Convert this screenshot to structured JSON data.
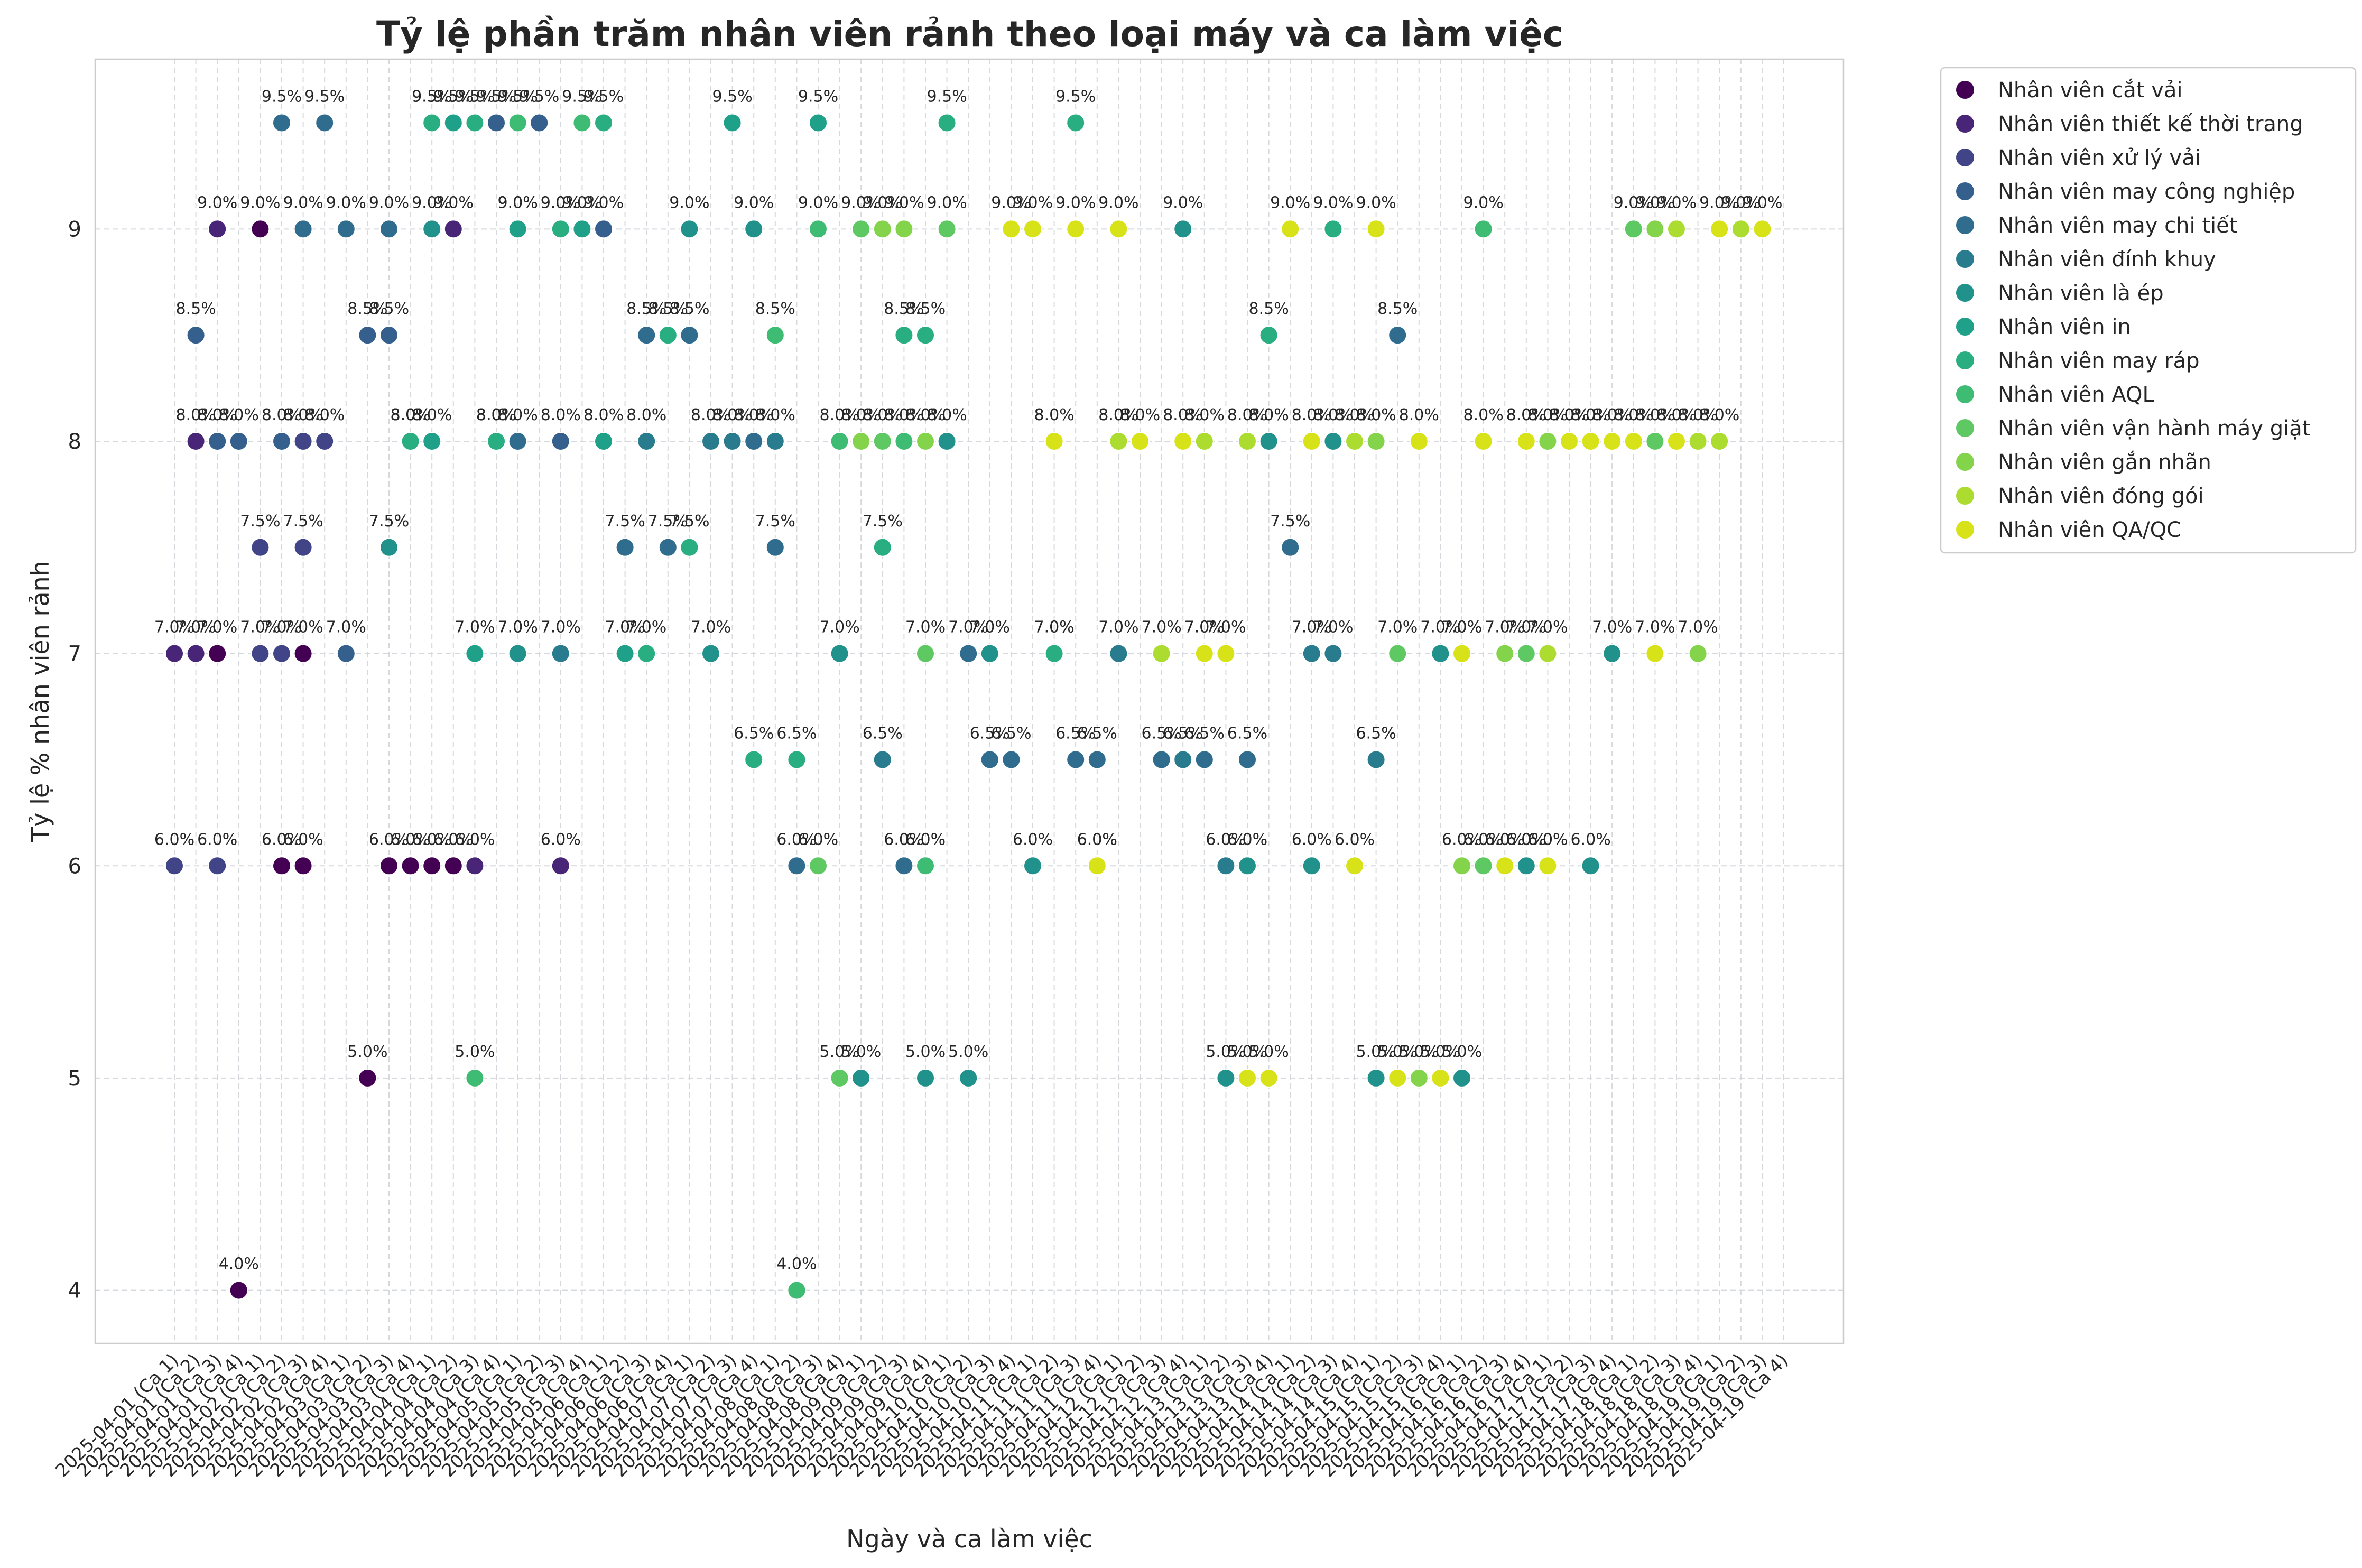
{
  "chart_data": {
    "type": "scatter",
    "title": "Tỷ lệ phần trăm nhân viên rảnh theo loại máy và ca làm việc",
    "xlabel": "Ngày và ca làm việc",
    "ylabel": "Tỷ lệ % nhân viên rảnh",
    "ylim": [
      3.75,
      9.8
    ],
    "yticks": [
      4,
      5,
      6,
      7,
      8,
      9
    ],
    "grid": true,
    "legend_position": "outside upper right",
    "label_format": "{y}%",
    "categories": [
      "2025-04-01 (Ca 1)",
      "2025-04-01 (Ca 2)",
      "2025-04-01 (Ca 3)",
      "2025-04-01 (Ca 4)",
      "2025-04-02 (Ca 1)",
      "2025-04-02 (Ca 2)",
      "2025-04-02 (Ca 3)",
      "2025-04-02 (Ca 4)",
      "2025-04-03 (Ca 1)",
      "2025-04-03 (Ca 2)",
      "2025-04-03 (Ca 3)",
      "2025-04-03 (Ca 4)",
      "2025-04-04 (Ca 1)",
      "2025-04-04 (Ca 2)",
      "2025-04-04 (Ca 3)",
      "2025-04-04 (Ca 4)",
      "2025-04-05 (Ca 1)",
      "2025-04-05 (Ca 2)",
      "2025-04-05 (Ca 3)",
      "2025-04-05 (Ca 4)",
      "2025-04-06 (Ca 1)",
      "2025-04-06 (Ca 2)",
      "2025-04-06 (Ca 3)",
      "2025-04-06 (Ca 4)",
      "2025-04-07 (Ca 1)",
      "2025-04-07 (Ca 2)",
      "2025-04-07 (Ca 3)",
      "2025-04-07 (Ca 4)",
      "2025-04-08 (Ca 1)",
      "2025-04-08 (Ca 2)",
      "2025-04-08 (Ca 3)",
      "2025-04-08 (Ca 4)",
      "2025-04-09 (Ca 1)",
      "2025-04-09 (Ca 2)",
      "2025-04-09 (Ca 3)",
      "2025-04-09 (Ca 4)",
      "2025-04-10 (Ca 1)",
      "2025-04-10 (Ca 2)",
      "2025-04-10 (Ca 3)",
      "2025-04-10 (Ca 4)",
      "2025-04-11 (Ca 1)",
      "2025-04-11 (Ca 2)",
      "2025-04-11 (Ca 3)",
      "2025-04-11 (Ca 4)",
      "2025-04-12 (Ca 1)",
      "2025-04-12 (Ca 2)",
      "2025-04-12 (Ca 3)",
      "2025-04-12 (Ca 4)",
      "2025-04-13 (Ca 1)",
      "2025-04-13 (Ca 2)",
      "2025-04-13 (Ca 3)",
      "2025-04-13 (Ca 4)",
      "2025-04-14 (Ca 1)",
      "2025-04-14 (Ca 2)",
      "2025-04-14 (Ca 3)",
      "2025-04-14 (Ca 4)",
      "2025-04-15 (Ca 1)",
      "2025-04-15 (Ca 2)",
      "2025-04-15 (Ca 3)",
      "2025-04-15 (Ca 4)",
      "2025-04-16 (Ca 1)",
      "2025-04-16 (Ca 2)",
      "2025-04-16 (Ca 3)",
      "2025-04-16 (Ca 4)",
      "2025-04-17 (Ca 1)",
      "2025-04-17 (Ca 2)",
      "2025-04-17 (Ca 3)",
      "2025-04-17 (Ca 4)",
      "2025-04-18 (Ca 1)",
      "2025-04-18 (Ca 2)",
      "2025-04-18 (Ca 3)",
      "2025-04-18 (Ca 4)",
      "2025-04-19 (Ca 1)",
      "2025-04-19 (Ca 2)",
      "2025-04-19 (Ca 3)",
      "2025-04-19 (Ca 4)"
    ],
    "series": [
      {
        "name": "Nhân viên cắt vải",
        "color": "#440154",
        "points": [
          [
            2,
            7.0
          ],
          [
            9,
            5.0
          ],
          [
            3,
            4.0
          ],
          [
            6,
            7.0
          ],
          [
            4,
            9.0
          ],
          [
            5,
            6.0
          ],
          [
            6,
            6.0
          ],
          [
            10,
            6.0
          ],
          [
            11,
            6.0
          ],
          [
            12,
            6.0
          ],
          [
            13,
            6.0
          ]
        ]
      },
      {
        "name": "Nhân viên thiết kế thời trang",
        "color": "#482576",
        "points": [
          [
            0,
            7.0
          ],
          [
            1,
            8.0
          ],
          [
            2,
            9.0
          ],
          [
            1,
            7.0
          ],
          [
            13,
            9.0
          ],
          [
            14,
            6.0
          ],
          [
            16,
            7.0
          ],
          [
            16,
            9.0
          ],
          [
            18,
            9.0
          ],
          [
            18,
            6.0
          ]
        ]
      },
      {
        "name": "Nhân viên xử lý vải",
        "color": "#414487",
        "points": [
          [
            0,
            6.0
          ],
          [
            2,
            6.0
          ],
          [
            4,
            7.0
          ],
          [
            5,
            7.0
          ],
          [
            4,
            7.5
          ],
          [
            6,
            7.5
          ],
          [
            6,
            8.0
          ],
          [
            7,
            8.0
          ],
          [
            10,
            7.5
          ]
        ]
      },
      {
        "name": "Nhân viên may công nghiệp",
        "color": "#35608d",
        "points": [
          [
            1,
            8.5
          ],
          [
            2,
            8.0
          ],
          [
            3,
            8.0
          ],
          [
            5,
            8.0
          ],
          [
            8,
            7.0
          ],
          [
            9,
            8.5
          ],
          [
            10,
            8.5
          ],
          [
            11,
            8.0
          ],
          [
            12,
            9.5
          ],
          [
            13,
            9.5
          ],
          [
            15,
            9.5
          ],
          [
            16,
            9.5
          ],
          [
            17,
            9.5
          ],
          [
            18,
            8.0
          ],
          [
            20,
            9.0
          ]
        ]
      },
      {
        "name": "Nhân viên may chi tiết",
        "color": "#2f6c8e",
        "points": [
          [
            5,
            9.5
          ],
          [
            6,
            9.0
          ],
          [
            7,
            9.5
          ],
          [
            8,
            9.0
          ],
          [
            10,
            9.0
          ],
          [
            15,
            8.0
          ],
          [
            16,
            8.0
          ],
          [
            21,
            7.5
          ],
          [
            22,
            8.5
          ],
          [
            23,
            7.5
          ],
          [
            24,
            8.5
          ],
          [
            27,
            8.0
          ],
          [
            28,
            7.5
          ],
          [
            29,
            6.0
          ],
          [
            34,
            6.0
          ],
          [
            37,
            7.0
          ],
          [
            38,
            6.5
          ],
          [
            39,
            6.5
          ],
          [
            42,
            6.5
          ],
          [
            43,
            6.5
          ],
          [
            46,
            6.5
          ],
          [
            48,
            6.5
          ],
          [
            50,
            6.5
          ],
          [
            52,
            7.5
          ],
          [
            57,
            8.5
          ],
          [
            56,
            6.5
          ]
        ]
      },
      {
        "name": "Nhân viên đính khuy",
        "color": "#287c8e",
        "points": [
          [
            11,
            8.0
          ],
          [
            18,
            7.0
          ],
          [
            22,
            8.0
          ],
          [
            25,
            8.0
          ],
          [
            26,
            8.0
          ],
          [
            28,
            8.0
          ],
          [
            33,
            6.5
          ],
          [
            41,
            7.0
          ],
          [
            44,
            7.0
          ],
          [
            47,
            6.5
          ],
          [
            49,
            6.0
          ],
          [
            51,
            8.0
          ],
          [
            53,
            7.0
          ],
          [
            54,
            7.0
          ],
          [
            56,
            6.5
          ],
          [
            63,
            6.0
          ]
        ]
      },
      {
        "name": "Nhân viên là ép",
        "color": "#21918c",
        "points": [
          [
            10,
            7.5
          ],
          [
            12,
            9.0
          ],
          [
            15,
            8.0
          ],
          [
            16,
            7.0
          ],
          [
            24,
            9.0
          ],
          [
            25,
            7.0
          ],
          [
            27,
            9.0
          ],
          [
            31,
            7.0
          ],
          [
            32,
            5.0
          ],
          [
            35,
            5.0
          ],
          [
            36,
            8.0
          ],
          [
            37,
            5.0
          ],
          [
            38,
            7.0
          ],
          [
            40,
            6.0
          ],
          [
            43,
            6.0
          ],
          [
            44,
            8.0
          ],
          [
            47,
            9.0
          ],
          [
            48,
            7.0
          ],
          [
            49,
            5.0
          ],
          [
            50,
            6.0
          ],
          [
            51,
            8.0
          ],
          [
            53,
            6.0
          ],
          [
            54,
            8.0
          ],
          [
            56,
            5.0
          ],
          [
            58,
            5.0
          ],
          [
            59,
            7.0
          ],
          [
            60,
            5.0
          ],
          [
            63,
            6.0
          ],
          [
            64,
            6.0
          ],
          [
            66,
            6.0
          ],
          [
            67,
            7.0
          ]
        ]
      },
      {
        "name": "Nhân viên in",
        "color": "#1fa088",
        "points": [
          [
            12,
            8.0
          ],
          [
            13,
            9.5
          ],
          [
            14,
            7.0
          ],
          [
            16,
            9.0
          ],
          [
            19,
            9.0
          ],
          [
            20,
            8.0
          ],
          [
            21,
            7.0
          ],
          [
            26,
            9.5
          ],
          [
            30,
            9.5
          ]
        ]
      },
      {
        "name": "Nhân viên may ráp",
        "color": "#28ae80",
        "points": [
          [
            11,
            8.0
          ],
          [
            12,
            9.5
          ],
          [
            14,
            9.5
          ],
          [
            15,
            8.0
          ],
          [
            18,
            9.0
          ],
          [
            20,
            9.5
          ],
          [
            22,
            7.0
          ],
          [
            23,
            8.5
          ],
          [
            24,
            7.5
          ],
          [
            27,
            6.5
          ],
          [
            29,
            6.5
          ],
          [
            33,
            7.5
          ],
          [
            34,
            8.5
          ],
          [
            35,
            8.5
          ],
          [
            36,
            9.5
          ],
          [
            41,
            7.0
          ],
          [
            42,
            9.5
          ],
          [
            51,
            8.5
          ],
          [
            54,
            9.0
          ]
        ]
      },
      {
        "name": "Nhân viên AQL",
        "color": "#3fbc73",
        "points": [
          [
            14,
            5.0
          ],
          [
            16,
            9.5
          ],
          [
            19,
            9.5
          ],
          [
            28,
            8.5
          ],
          [
            29,
            4.0
          ],
          [
            30,
            9.0
          ],
          [
            31,
            8.0
          ],
          [
            34,
            8.0
          ],
          [
            35,
            6.0
          ],
          [
            56,
            8.0
          ],
          [
            61,
            9.0
          ]
        ]
      },
      {
        "name": "Nhân viên vận hành máy giặt",
        "color": "#5ec962",
        "points": [
          [
            32,
            9.0
          ],
          [
            30,
            6.0
          ],
          [
            31,
            5.0
          ],
          [
            33,
            8.0
          ],
          [
            35,
            7.0
          ],
          [
            36,
            9.0
          ],
          [
            57,
            7.0
          ],
          [
            61,
            6.0
          ],
          [
            63,
            7.0
          ],
          [
            68,
            9.0
          ],
          [
            69,
            8.0
          ]
        ]
      },
      {
        "name": "Nhân viên gắn nhãn",
        "color": "#84d44b",
        "points": [
          [
            32,
            8.0
          ],
          [
            33,
            9.0
          ],
          [
            34,
            9.0
          ],
          [
            35,
            8.0
          ],
          [
            56,
            8.0
          ],
          [
            58,
            5.0
          ],
          [
            60,
            6.0
          ],
          [
            62,
            7.0
          ],
          [
            63,
            8.0
          ],
          [
            64,
            8.0
          ],
          [
            69,
            9.0
          ],
          [
            71,
            7.0
          ]
        ]
      },
      {
        "name": "Nhân viên đóng gói",
        "color": "#addc30",
        "points": [
          [
            44,
            8.0
          ],
          [
            46,
            7.0
          ],
          [
            48,
            8.0
          ],
          [
            50,
            8.0
          ],
          [
            55,
            8.0
          ],
          [
            60,
            7.0
          ],
          [
            64,
            7.0
          ],
          [
            65,
            8.0
          ],
          [
            70,
            9.0
          ],
          [
            71,
            8.0
          ],
          [
            72,
            8.0
          ],
          [
            73,
            9.0
          ]
        ]
      },
      {
        "name": "Nhân viên QA/QC",
        "color": "#d8e219",
        "points": [
          [
            39,
            9.0
          ],
          [
            40,
            9.0
          ],
          [
            41,
            8.0
          ],
          [
            42,
            9.0
          ],
          [
            43,
            6.0
          ],
          [
            44,
            9.0
          ],
          [
            45,
            8.0
          ],
          [
            47,
            8.0
          ],
          [
            48,
            7.0
          ],
          [
            49,
            7.0
          ],
          [
            50,
            5.0
          ],
          [
            51,
            5.0
          ],
          [
            52,
            9.0
          ],
          [
            53,
            8.0
          ],
          [
            55,
            6.0
          ],
          [
            56,
            9.0
          ],
          [
            57,
            5.0
          ],
          [
            58,
            8.0
          ],
          [
            59,
            5.0
          ],
          [
            60,
            7.0
          ],
          [
            61,
            8.0
          ],
          [
            62,
            6.0
          ],
          [
            63,
            8.0
          ],
          [
            64,
            6.0
          ],
          [
            65,
            8.0
          ],
          [
            66,
            8.0
          ],
          [
            67,
            8.0
          ],
          [
            68,
            8.0
          ],
          [
            69,
            7.0
          ],
          [
            70,
            8.0
          ],
          [
            72,
            9.0
          ],
          [
            74,
            9.0
          ]
        ]
      }
    ]
  }
}
